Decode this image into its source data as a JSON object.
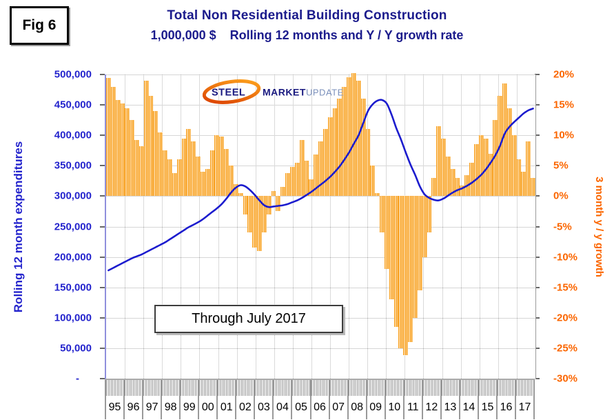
{
  "fig_label": "Fig 6",
  "title": {
    "line1": "Total Non Residential Building Construction",
    "line2": "1,000,000 $    Rolling 12 months and Y / Y growth rate"
  },
  "logo": {
    "word1": "STEEL",
    "word2": "MARKET",
    "word3": "UPDATE"
  },
  "annotation": "Through July 2017",
  "left_axis": {
    "title": "Rolling 12 month expenditures",
    "tick_labels": [
      "500,000",
      "450,000",
      "400,000",
      "350,000",
      "300,000",
      "250,000",
      "200,000",
      "150,000",
      "100,000",
      "50,000",
      "-"
    ]
  },
  "right_axis": {
    "title": "3 month y / y growth",
    "tick_labels": [
      "20%",
      "15%",
      "10%",
      "5%",
      "0%",
      "-5%",
      "-10%",
      "-15%",
      "-20%",
      "-25%",
      "-30%"
    ]
  },
  "x_axis": {
    "year_labels": [
      "95",
      "96",
      "97",
      "98",
      "99",
      "00",
      "01",
      "02",
      "03",
      "04",
      "05",
      "06",
      "07",
      "08",
      "09",
      "10",
      "11",
      "12",
      "13",
      "14",
      "15",
      "16",
      "17"
    ]
  },
  "colors": {
    "bar": "#F8A01E",
    "line": "#1C1CCE",
    "left_axis_text": "#2424CD",
    "right_axis_text": "#FB6600",
    "title_text": "#1B1B8C"
  },
  "chart_data": {
    "type": "bar+line",
    "frequency": "quarterly",
    "x_start": "1995Q1",
    "x_end": "2017Q3",
    "x": [
      "95Q1",
      "95Q2",
      "95Q3",
      "95Q4",
      "96Q1",
      "96Q2",
      "96Q3",
      "96Q4",
      "97Q1",
      "97Q2",
      "97Q3",
      "97Q4",
      "98Q1",
      "98Q2",
      "98Q3",
      "98Q4",
      "99Q1",
      "99Q2",
      "99Q3",
      "99Q4",
      "00Q1",
      "00Q2",
      "00Q3",
      "00Q4",
      "01Q1",
      "01Q2",
      "01Q3",
      "01Q4",
      "02Q1",
      "02Q2",
      "02Q3",
      "02Q4",
      "03Q1",
      "03Q2",
      "03Q3",
      "03Q4",
      "04Q1",
      "04Q2",
      "04Q3",
      "04Q4",
      "05Q1",
      "05Q2",
      "05Q3",
      "05Q4",
      "06Q1",
      "06Q2",
      "06Q3",
      "06Q4",
      "07Q1",
      "07Q2",
      "07Q3",
      "07Q4",
      "08Q1",
      "08Q2",
      "08Q3",
      "08Q4",
      "09Q1",
      "09Q2",
      "09Q3",
      "09Q4",
      "10Q1",
      "10Q2",
      "10Q3",
      "10Q4",
      "11Q1",
      "11Q2",
      "11Q3",
      "11Q4",
      "12Q1",
      "12Q2",
      "12Q3",
      "12Q4",
      "13Q1",
      "13Q2",
      "13Q3",
      "13Q4",
      "14Q1",
      "14Q2",
      "14Q3",
      "14Q4",
      "15Q1",
      "15Q2",
      "15Q3",
      "15Q4",
      "16Q1",
      "16Q2",
      "16Q3",
      "16Q4",
      "17Q1",
      "17Q2",
      "17Q3"
    ],
    "series": [
      {
        "name": "3 month y / y growth",
        "type": "bar",
        "axis": "right",
        "unit": "%",
        "values": [
          19.4,
          18.0,
          15.8,
          15.2,
          14.5,
          12.5,
          9.2,
          8.2,
          19.0,
          16.5,
          14.0,
          10.5,
          7.5,
          6.0,
          3.8,
          6.0,
          9.5,
          11.0,
          9.0,
          6.5,
          4.0,
          4.5,
          7.5,
          10.0,
          9.8,
          7.8,
          5.0,
          2.0,
          0.5,
          -3.0,
          -6.0,
          -8.5,
          -9.0,
          -6.0,
          -3.0,
          0.8,
          -2.5,
          1.5,
          3.8,
          4.8,
          5.5,
          9.2,
          5.8,
          2.8,
          6.8,
          9.0,
          11.0,
          13.0,
          14.5,
          16.0,
          18.0,
          19.5,
          20.2,
          19.0,
          16.0,
          11.0,
          5.0,
          0.5,
          -6.0,
          -12.0,
          -17.0,
          -21.5,
          -25.0,
          -26.1,
          -24.0,
          -20.0,
          -15.5,
          -10.0,
          -6.0,
          3.0,
          11.5,
          9.5,
          6.5,
          4.5,
          3.0,
          1.8,
          3.5,
          5.5,
          8.5,
          10.0,
          9.5,
          7.0,
          12.5,
          16.5,
          18.5,
          14.5,
          10.0,
          6.0,
          4.0,
          9.0,
          3.0
        ]
      },
      {
        "name": "Rolling 12 month expenditures",
        "type": "line",
        "axis": "left",
        "unit": "million $",
        "values": [
          178000,
          182000,
          186000,
          190000,
          194000,
          198000,
          201000,
          204000,
          208000,
          212000,
          216000,
          220000,
          224000,
          229000,
          234000,
          239000,
          244000,
          249000,
          253000,
          257000,
          262000,
          268000,
          274000,
          280000,
          287000,
          296000,
          306000,
          314000,
          318000,
          316000,
          310000,
          302000,
          293000,
          285000,
          282000,
          283000,
          284000,
          285000,
          287000,
          290000,
          293000,
          297000,
          302000,
          307000,
          313000,
          319000,
          325000,
          332000,
          340000,
          349000,
          360000,
          372000,
          386000,
          400000,
          420000,
          440000,
          451000,
          457000,
          458000,
          452000,
          434000,
          412000,
          393000,
          372000,
          352000,
          335000,
          316000,
          303000,
          297000,
          294000,
          293000,
          296000,
          301000,
          306000,
          310000,
          313000,
          317000,
          322000,
          328000,
          335000,
          344000,
          355000,
          367000,
          383000,
          403000,
          414000,
          422000,
          429000,
          436000,
          441000,
          444000
        ]
      }
    ],
    "y_left": {
      "min": 0,
      "max": 500000,
      "step": 50000
    },
    "y_right": {
      "min": -30,
      "max": 20,
      "step": 5
    },
    "grid": true,
    "legend": "none"
  }
}
